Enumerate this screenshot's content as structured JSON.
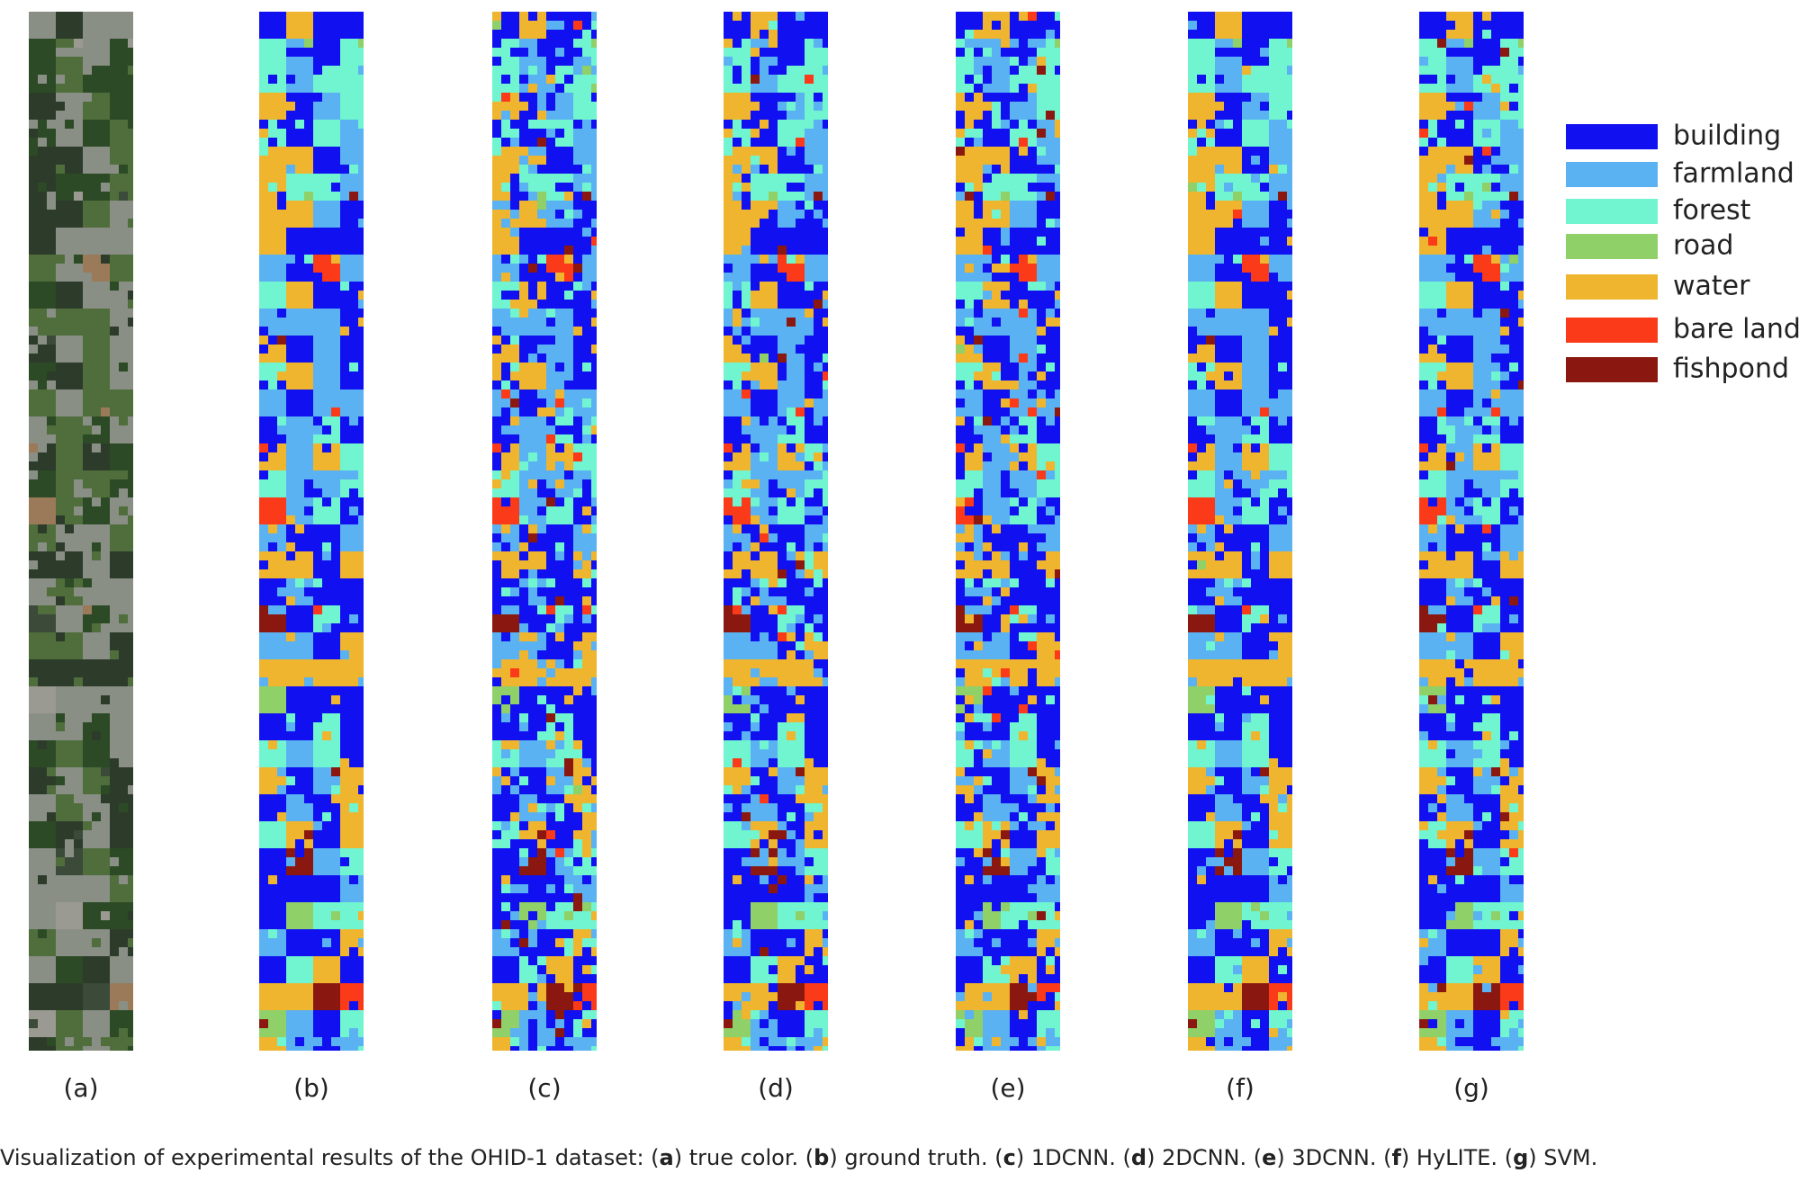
{
  "panels": [
    {
      "label": "(a)"
    },
    {
      "label": "(b)"
    },
    {
      "label": "(c)"
    },
    {
      "label": "(d)"
    },
    {
      "label": "(e)"
    },
    {
      "label": "(f)"
    },
    {
      "label": "(g)"
    }
  ],
  "legend": [
    {
      "name": "building",
      "color": "#1010f0"
    },
    {
      "name": "farmland",
      "color": "#5ab2f2"
    },
    {
      "name": "forest",
      "color": "#70f5d0"
    },
    {
      "name": "road",
      "color": "#90d068"
    },
    {
      "name": "water",
      "color": "#efb52e"
    },
    {
      "name": "bare land",
      "color": "#fa3a18"
    },
    {
      "name": "fishpond",
      "color": "#8a1810"
    }
  ],
  "caption": {
    "prefix": "Visualization of experimental results of the OHID-1 dataset: ",
    "items": [
      {
        "open": "(",
        "letter": "a",
        "text": ") true color. "
      },
      {
        "open": "(",
        "letter": "b",
        "text": ") ground truth. "
      },
      {
        "open": "(",
        "letter": "c",
        "text": ") 1DCNN. "
      },
      {
        "open": "(",
        "letter": "d",
        "text": ") 2DCNN. "
      },
      {
        "open": "(",
        "letter": "e",
        "text": ") 3DCNN. "
      },
      {
        "open": "(",
        "letter": "f",
        "text": ") HyLITE. "
      },
      {
        "open": "(",
        "letter": "g",
        "text": ") SVM."
      }
    ]
  }
}
